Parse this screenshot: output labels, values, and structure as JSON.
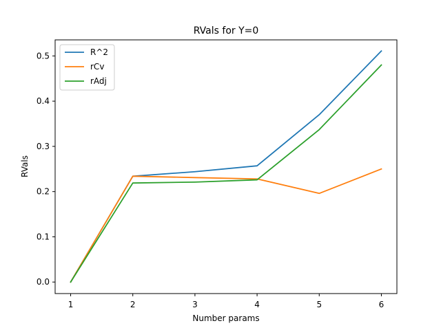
{
  "chart_data": {
    "type": "line",
    "title": "RVals for Y=0",
    "xlabel": "Number params",
    "ylabel": "RVals",
    "x": [
      1,
      2,
      3,
      4,
      5,
      6
    ],
    "xlim": [
      0.75,
      6.25
    ],
    "ylim": [
      -0.0255,
      0.5355
    ],
    "xticks": [
      "1",
      "2",
      "3",
      "4",
      "5",
      "6"
    ],
    "yticks": [
      "0.0",
      "0.1",
      "0.2",
      "0.3",
      "0.4",
      "0.5"
    ],
    "grid": false,
    "legend_position": "top-left",
    "series": [
      {
        "name": "R^2",
        "color": "#1f77b4",
        "values": [
          0.0,
          0.234,
          0.244,
          0.257,
          0.37,
          0.511
        ]
      },
      {
        "name": "rCv",
        "color": "#ff7f0e",
        "values": [
          0.0,
          0.234,
          0.231,
          0.228,
          0.196,
          0.25
        ]
      },
      {
        "name": "rAdj",
        "color": "#2ca02c",
        "values": [
          0.0,
          0.219,
          0.221,
          0.226,
          0.337,
          0.48
        ]
      }
    ]
  }
}
